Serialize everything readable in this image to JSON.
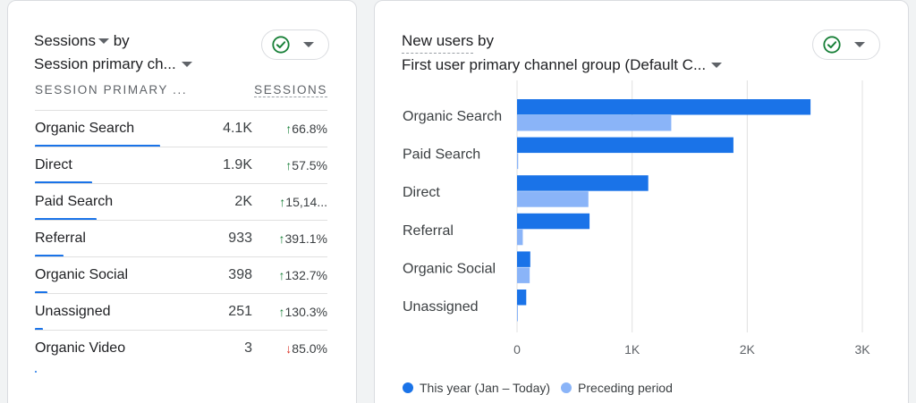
{
  "left_card": {
    "title_metric": "Sessions",
    "title_by": "by",
    "title_dimension": "Session primary ch...",
    "table": {
      "col_dimension": "SESSION PRIMARY ...",
      "col_metric": "SESSIONS",
      "rows": [
        {
          "name": "Organic Search",
          "value": "4.1K",
          "change": "66.8%",
          "direction": "up",
          "bar_fraction": 1.0
        },
        {
          "name": "Direct",
          "value": "1.9K",
          "change": "57.5%",
          "direction": "up",
          "bar_fraction": 0.46
        },
        {
          "name": "Paid Search",
          "value": "2K",
          "change": "15,14...",
          "direction": "up",
          "bar_fraction": 0.49
        },
        {
          "name": "Referral",
          "value": "933",
          "change": "391.1%",
          "direction": "up",
          "bar_fraction": 0.23
        },
        {
          "name": "Organic Social",
          "value": "398",
          "change": "132.7%",
          "direction": "up",
          "bar_fraction": 0.097
        },
        {
          "name": "Unassigned",
          "value": "251",
          "change": "130.3%",
          "direction": "up",
          "bar_fraction": 0.061
        },
        {
          "name": "Organic Video",
          "value": "3",
          "change": "85.0%",
          "direction": "down",
          "bar_fraction": 0.005
        }
      ]
    }
  },
  "right_card": {
    "title_metric": "New users",
    "title_by": "by",
    "title_dimension": "First user primary channel group (Default C..."
  },
  "icons": {
    "check": "check-circle-icon",
    "caret": "caret-down-icon"
  },
  "colors": {
    "this_year": "#1a73e8",
    "preceding": "#8ab4f8",
    "up": "#188038",
    "down": "#d93025",
    "check": "#188038"
  },
  "chart_data": {
    "type": "bar",
    "orientation": "horizontal",
    "categories": [
      "Organic Search",
      "Paid Search",
      "Direct",
      "Referral",
      "Organic Social",
      "Unassigned"
    ],
    "series": [
      {
        "name": "This year (Jan – Today)",
        "values": [
          2550,
          1880,
          1140,
          630,
          115,
          80
        ]
      },
      {
        "name": "Preceding period",
        "values": [
          1340,
          10,
          620,
          50,
          110,
          0
        ]
      }
    ],
    "xlim": [
      0,
      3000
    ],
    "x_ticks": [
      "0",
      "1K",
      "2K",
      "3K"
    ],
    "x_tick_values": [
      0,
      1000,
      2000,
      3000
    ],
    "grid": true,
    "legend": "bottom-left"
  }
}
